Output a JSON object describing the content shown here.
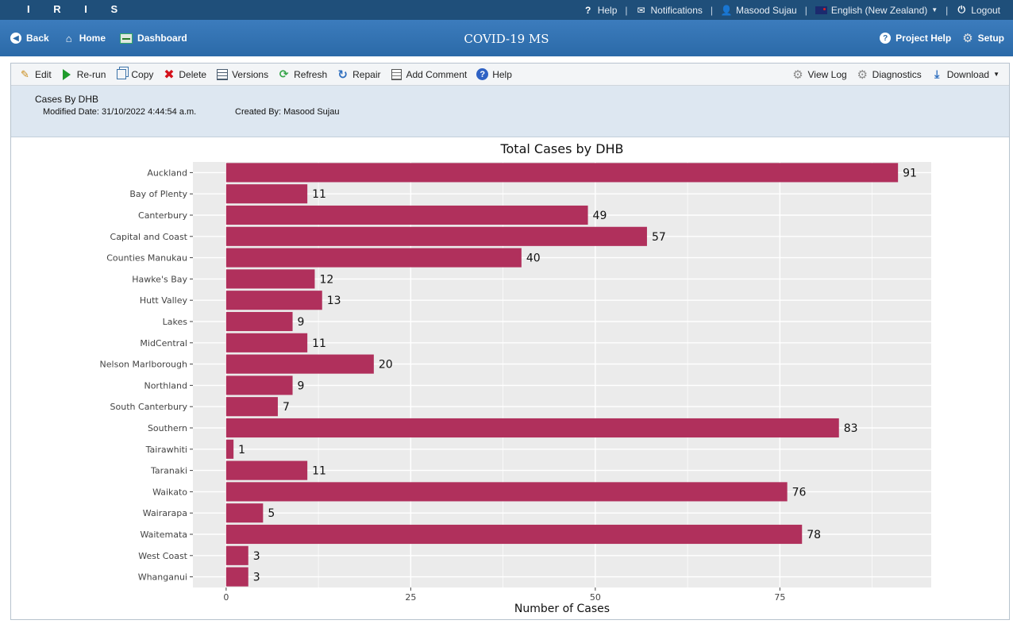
{
  "topbar": {
    "logo": "I R I S",
    "help": "Help",
    "notifications": "Notifications",
    "user": "Masood Sujau",
    "language": "English (New Zealand)",
    "logout": "Logout"
  },
  "navbar": {
    "back": "Back",
    "home": "Home",
    "dashboard": "Dashboard",
    "title": "COVID-19 MS",
    "project_help": "Project Help",
    "setup": "Setup"
  },
  "toolbar": {
    "edit": "Edit",
    "rerun": "Re-run",
    "copy": "Copy",
    "delete": "Delete",
    "versions": "Versions",
    "refresh": "Refresh",
    "repair": "Repair",
    "add_comment": "Add Comment",
    "help": "Help",
    "view_log": "View Log",
    "diagnostics": "Diagnostics",
    "download": "Download"
  },
  "meta": {
    "title": "Cases By DHB",
    "modified": "Modified Date: 31/10/2022 4:44:54 a.m.",
    "created": "Created By: Masood Sujau"
  },
  "colors": {
    "bar": "#b0305c",
    "panel_bg": "#ebebeb",
    "grid": "#ffffff"
  },
  "chart_data": {
    "type": "bar",
    "orientation": "horizontal",
    "title": "Total Cases by DHB",
    "xlabel": "Number of Cases",
    "ylabel": "",
    "xlim": [
      -4.5,
      95.5
    ],
    "xticks": [
      0,
      25,
      50,
      75
    ],
    "grid": true,
    "categories": [
      "Auckland",
      "Bay of Plenty",
      "Canterbury",
      "Capital and Coast",
      "Counties Manukau",
      "Hawke's Bay",
      "Hutt Valley",
      "Lakes",
      "MidCentral",
      "Nelson Marlborough",
      "Northland",
      "South Canterbury",
      "Southern",
      "Tairawhiti",
      "Taranaki",
      "Waikato",
      "Wairarapa",
      "Waitemata",
      "West Coast",
      "Whanganui"
    ],
    "values": [
      91,
      11,
      49,
      57,
      40,
      12,
      13,
      9,
      11,
      20,
      9,
      7,
      83,
      1,
      11,
      76,
      5,
      78,
      3,
      3
    ],
    "data_labels": [
      "91",
      "11",
      "49",
      "57",
      "40",
      "12",
      "13",
      "9",
      "11",
      "20",
      "9",
      "7",
      "83",
      "1",
      "11",
      "76",
      "5",
      "78",
      "3",
      "3"
    ]
  }
}
